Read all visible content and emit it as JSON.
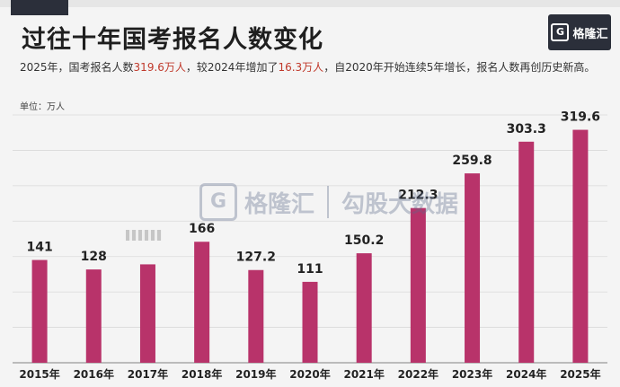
{
  "title": "过往十年国考报名人数变化",
  "subtitle_parts": [
    "2025年，国考报名人数",
    "319.6万人",
    "，较2024年增加了",
    "16.3万人",
    "，自2020年开始连续5年增长，报名人数再创历史新高。"
  ],
  "logo_text": "格隆汇",
  "unit": "单位：万人",
  "watermark": {
    "brand": "格隆汇",
    "brand2": "勾股大数据"
  },
  "colors": {
    "bar": "#b8336a",
    "background": "#f4f4f4",
    "grid": "#d9d9d9",
    "highlight": "#c0392b"
  },
  "chart_data": {
    "type": "bar",
    "title": "过往十年国考报名人数变化",
    "ylabel": "单位：万人",
    "categories": [
      "2015年",
      "2016年",
      "2017年",
      "2018年",
      "2019年",
      "2020年",
      "2021年",
      "2022年",
      "2023年",
      "2024年",
      "2025年"
    ],
    "values": [
      141,
      128,
      135,
      166,
      127.2,
      111,
      150.2,
      212.3,
      259.8,
      303.3,
      319.6
    ],
    "labels": [
      "141",
      "128",
      "",
      "166",
      "127.2",
      "111",
      "150.2",
      "212.3",
      "259.8",
      "303.3",
      "319.6"
    ],
    "ylim": [
      0,
      340
    ],
    "grid": true,
    "legend": "none"
  }
}
